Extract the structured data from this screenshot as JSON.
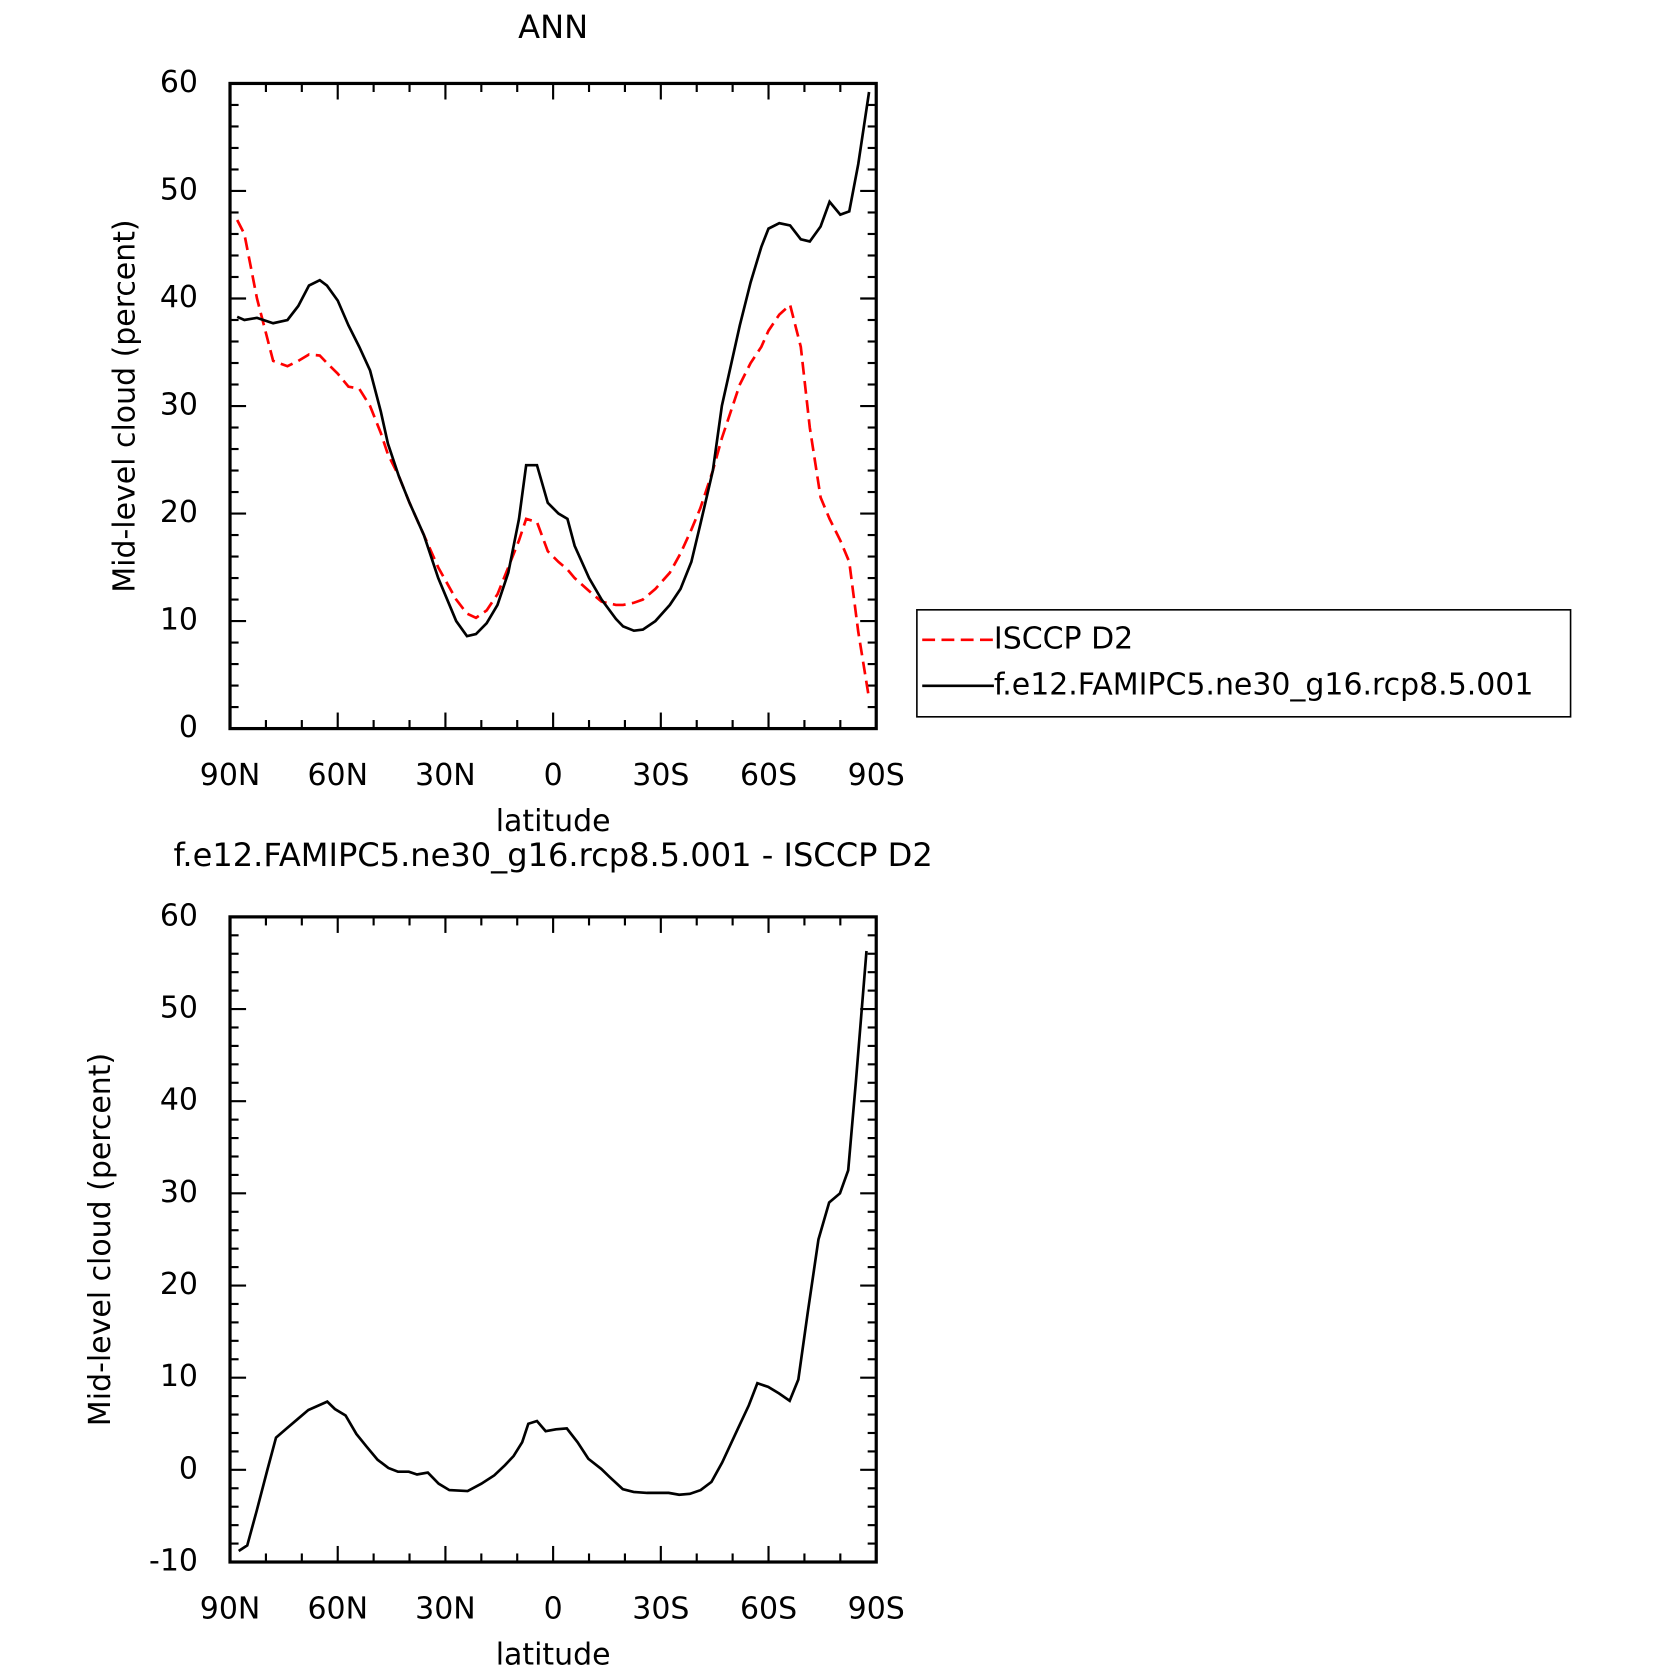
{
  "chart_data": [
    {
      "type": "line",
      "title": "ANN",
      "xlabel": "latitude",
      "ylabel": "Mid-level cloud (percent)",
      "x": [
        88,
        86,
        82.5,
        78,
        74,
        71,
        68,
        65,
        63,
        60,
        57,
        54,
        51,
        48,
        46,
        43,
        40,
        36,
        32,
        27,
        24,
        21.5,
        18.5,
        15.5,
        12.5,
        9.5,
        7.5,
        4.5,
        1.5,
        -1.5,
        -4,
        -6,
        -10,
        -13.5,
        -17.5,
        -19.5,
        -22.5,
        -25,
        -28.5,
        -32.5,
        -35.5,
        -38.5,
        -41,
        -44.5,
        -47,
        -52,
        -55,
        -58,
        -60,
        -63,
        -66,
        -69,
        -71.5,
        -74.5,
        -77,
        -80,
        -82.5,
        -85,
        -88
      ],
      "series": [
        {
          "name": "ISCCP D2",
          "color": "#ff0000",
          "dash": "dashed",
          "values": [
            47.3,
            46,
            40,
            34.2,
            33.7,
            34.2,
            34.8,
            34.7,
            34,
            33,
            31.8,
            31.6,
            30,
            27.5,
            25.5,
            23.5,
            21,
            18,
            15,
            12,
            10.7,
            10.3,
            11,
            12.5,
            15,
            17.5,
            19.5,
            19.2,
            16.5,
            15.5,
            14.8,
            14,
            12.8,
            11.8,
            11.5,
            11.5,
            11.7,
            12,
            13,
            14.5,
            16.3,
            18.5,
            20.5,
            24,
            27,
            32,
            34,
            35.5,
            37,
            38.5,
            39.4,
            35.5,
            28,
            21.5,
            19.5,
            17.5,
            15.5,
            9,
            2.8
          ]
        },
        {
          "name": "f.e12.FAMIPC5.ne30_g16.rcp8.5.001",
          "color": "#000000",
          "dash": "solid",
          "values": [
            38.3,
            38,
            38.2,
            37.7,
            38,
            39.3,
            41.2,
            41.7,
            41.2,
            39.8,
            37.5,
            35.5,
            33.3,
            29.5,
            26.5,
            23.5,
            21,
            18,
            14,
            10,
            8.6,
            8.8,
            9.8,
            11.5,
            14.5,
            19.5,
            24.5,
            24.5,
            21,
            20,
            19.5,
            17,
            14,
            12,
            10.2,
            9.5,
            9.1,
            9.2,
            10,
            11.5,
            13,
            15.5,
            19,
            24,
            30,
            37.5,
            41.5,
            44.8,
            46.5,
            47,
            46.8,
            45.5,
            45.3,
            46.7,
            49,
            47.8,
            48.1,
            52.5,
            59.2
          ]
        }
      ],
      "xlim": [
        90,
        -90
      ],
      "xticks": [
        {
          "value": 90,
          "label": "90N"
        },
        {
          "value": 60,
          "label": "60N"
        },
        {
          "value": 30,
          "label": "30N"
        },
        0,
        {
          "value": -30,
          "label": "30S"
        },
        {
          "value": -60,
          "label": "60S"
        },
        {
          "value": -90,
          "label": "90S"
        }
      ],
      "ylim": [
        0,
        60
      ],
      "yticks": [
        0,
        10,
        20,
        30,
        40,
        50,
        60
      ],
      "legend": "right"
    },
    {
      "type": "line",
      "title": "f.e12.FAMIPC5.ne30_g16.rcp8.5.001 - ISCCP D2",
      "xlabel": "latitude",
      "ylabel": "Mid-level cloud (percent)",
      "x": [
        87.6,
        85.2,
        82.6,
        79.6,
        77.2,
        74.2,
        71.2,
        68.2,
        62.9,
        60.8,
        57.8,
        54.8,
        51.9,
        48.9,
        45.9,
        43.2,
        40.2,
        37.9,
        34.9,
        31.9,
        28.9,
        23.8,
        20,
        16.4,
        13.4,
        11,
        8.6,
        6.9,
        4.5,
        2.1,
        -0.8,
        -3.8,
        -6.8,
        -9.8,
        -13.4,
        -15.8,
        -19.4,
        -22.4,
        -26.2,
        -32.2,
        -35.1,
        -38.1,
        -41.1,
        -44.1,
        -47.1,
        -51.5,
        -54.5,
        -56.9,
        -59.9,
        -62.9,
        -65.9,
        -68.3,
        -70.9,
        -73.9,
        -76.9,
        -79.9,
        -82.2,
        -84.3,
        -87.3
      ],
      "values": [
        -8.8,
        -8.2,
        -4.5,
        0,
        3.5,
        4.5,
        5.5,
        6.5,
        7.4,
        6.6,
        5.9,
        3.9,
        2.5,
        1.1,
        0.2,
        -0.2,
        -0.2,
        -0.5,
        -0.3,
        -1.5,
        -2.2,
        -2.3,
        -1.5,
        -0.6,
        0.5,
        1.5,
        3,
        5,
        5.3,
        4.2,
        4.4,
        4.5,
        3,
        1.2,
        0.1,
        -0.8,
        -2.1,
        -2.4,
        -2.5,
        -2.5,
        -2.7,
        -2.6,
        -2.2,
        -1.3,
        0.8,
        4.5,
        7,
        9.4,
        9,
        8.3,
        7.5,
        9.8,
        17,
        25,
        29,
        30,
        32.5,
        42,
        56.3
      ],
      "color": "#000000",
      "xlim": [
        90,
        -90
      ],
      "xticks": [
        {
          "value": 90,
          "label": "90N"
        },
        {
          "value": 60,
          "label": "60N"
        },
        {
          "value": 30,
          "label": "30N"
        },
        0,
        {
          "value": -30,
          "label": "30S"
        },
        {
          "value": -60,
          "label": "60S"
        },
        {
          "value": -90,
          "label": "90S"
        }
      ],
      "ylim": [
        -10,
        60
      ],
      "yticks": [
        -10,
        0,
        10,
        20,
        30,
        40,
        50,
        60
      ]
    }
  ]
}
